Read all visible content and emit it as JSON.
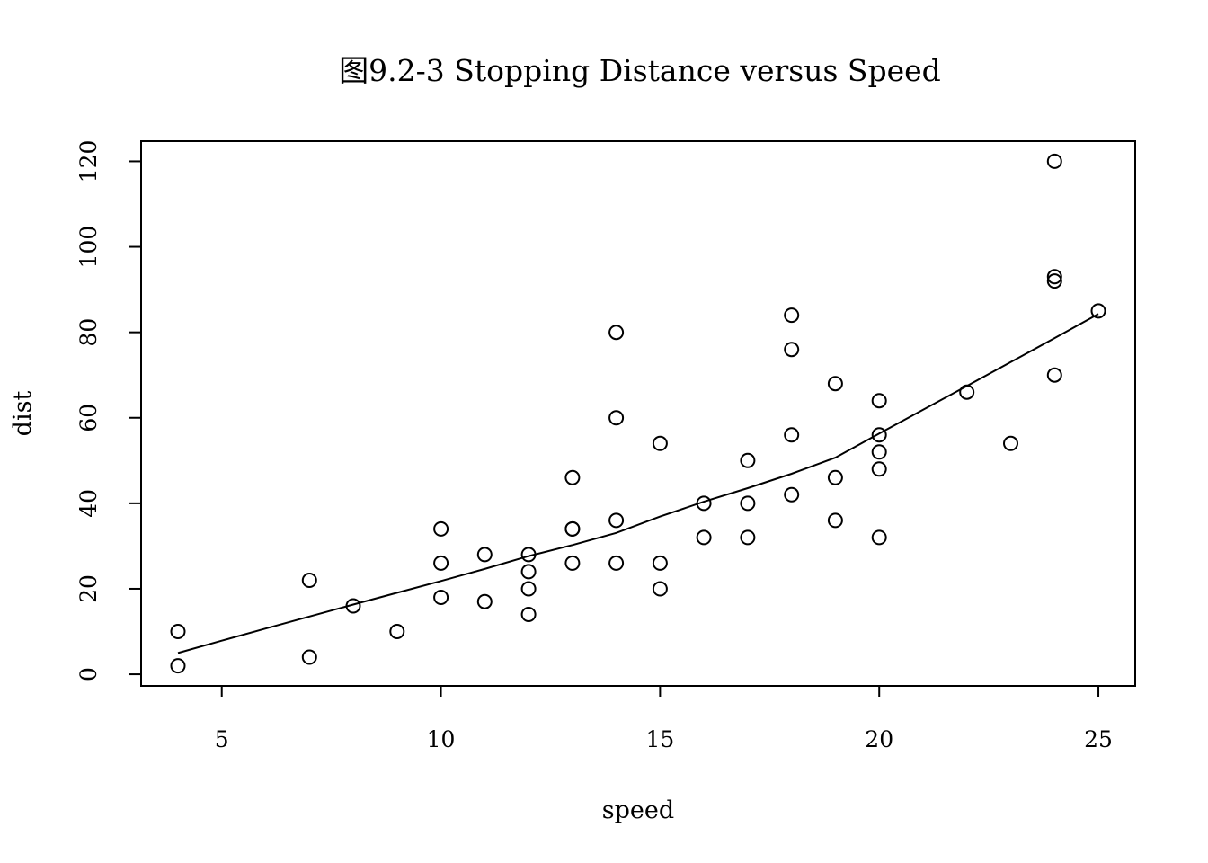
{
  "chart_data": {
    "type": "scatter",
    "title": "图9.2-3 Stopping Distance versus Speed",
    "xlabel": "speed",
    "ylabel": "dist",
    "xlim": [
      3.16,
      25.84
    ],
    "ylim": [
      -2.72,
      124.72
    ],
    "x_ticks": [
      5,
      10,
      15,
      20,
      25
    ],
    "y_ticks": [
      0,
      20,
      40,
      60,
      80,
      100,
      120
    ],
    "grid": false,
    "legend": "none",
    "point_style": "open-circle",
    "colors": {
      "points": "#000000",
      "line": "#000000",
      "frame": "#000000",
      "background": "#ffffff"
    },
    "series": [
      {
        "type": "scatter",
        "x": [
          4,
          4,
          7,
          7,
          8,
          9,
          10,
          10,
          10,
          11,
          11,
          12,
          12,
          12,
          12,
          13,
          13,
          13,
          13,
          14,
          14,
          14,
          14,
          15,
          15,
          15,
          16,
          16,
          17,
          17,
          17,
          18,
          18,
          18,
          18,
          19,
          19,
          19,
          20,
          20,
          20,
          20,
          20,
          22,
          23,
          24,
          24,
          24,
          24,
          25
        ],
        "y": [
          2,
          10,
          4,
          22,
          16,
          10,
          18,
          26,
          34,
          17,
          28,
          14,
          20,
          24,
          28,
          26,
          34,
          34,
          46,
          26,
          36,
          60,
          80,
          20,
          26,
          54,
          32,
          40,
          32,
          40,
          50,
          42,
          56,
          76,
          84,
          36,
          46,
          68,
          32,
          48,
          52,
          56,
          64,
          66,
          54,
          70,
          92,
          93,
          120,
          85
        ]
      },
      {
        "type": "line",
        "x": [
          4,
          5,
          6,
          7,
          8,
          9,
          10,
          11,
          12,
          13,
          14,
          15,
          16,
          17,
          18,
          19,
          20,
          22,
          23,
          24,
          25
        ],
        "y": [
          4.97,
          7.85,
          10.7,
          13.52,
          16.31,
          19.07,
          21.82,
          24.64,
          27.64,
          30.23,
          33.07,
          36.9,
          40.36,
          43.55,
          46.91,
          50.67,
          56.3,
          67.43,
          73.03,
          78.64,
          84.29
        ]
      }
    ]
  }
}
